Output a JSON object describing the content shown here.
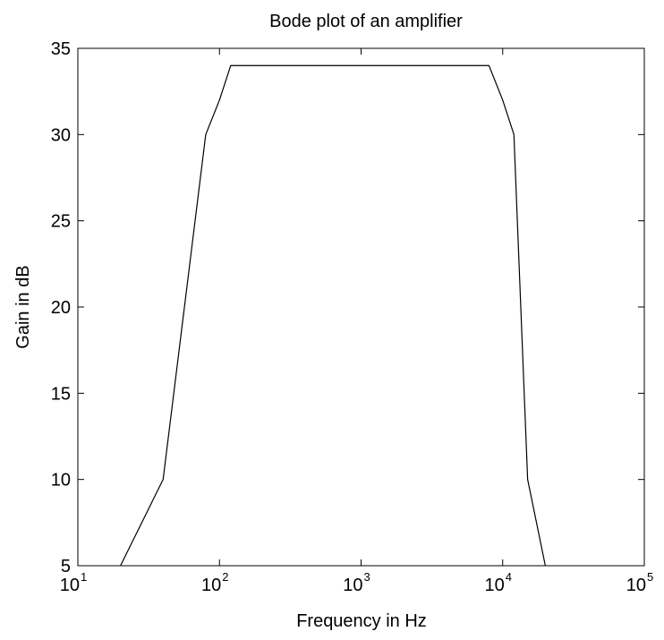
{
  "chart_data": {
    "type": "line",
    "title": "Bode plot of an amplifier",
    "xlabel": "Frequency in Hz",
    "ylabel": "Gain in dB",
    "x_scale": "log",
    "xlim": [
      10,
      100000
    ],
    "ylim": [
      5,
      35
    ],
    "grid": false,
    "legend": "none",
    "x_ticks": [
      {
        "value": 10,
        "base": "10",
        "exp": "1"
      },
      {
        "value": 100,
        "base": "10",
        "exp": "2"
      },
      {
        "value": 1000,
        "base": "10",
        "exp": "3"
      },
      {
        "value": 10000,
        "base": "10",
        "exp": "4"
      },
      {
        "value": 100000,
        "base": "10",
        "exp": "5"
      }
    ],
    "y_ticks": [
      {
        "value": 5,
        "label": "5"
      },
      {
        "value": 10,
        "label": "10"
      },
      {
        "value": 15,
        "label": "15"
      },
      {
        "value": 20,
        "label": "20"
      },
      {
        "value": 25,
        "label": "25"
      },
      {
        "value": 30,
        "label": "30"
      },
      {
        "value": 35,
        "label": "35"
      }
    ],
    "series": [
      {
        "color": "#000000",
        "x": [
          20,
          40,
          80,
          100,
          120,
          8000,
          10000,
          12000,
          15000,
          20000
        ],
        "y": [
          5,
          10,
          30,
          32,
          34,
          34,
          32,
          30,
          10,
          5
        ]
      }
    ]
  }
}
